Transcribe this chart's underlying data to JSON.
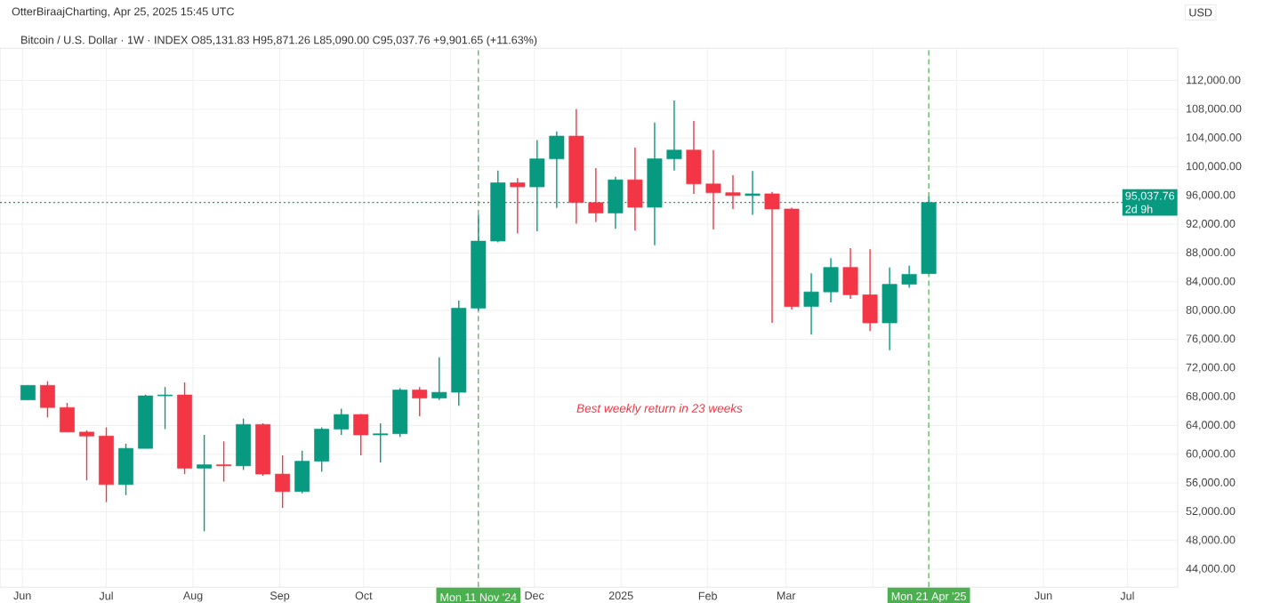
{
  "chart_data": {
    "type": "candlestick",
    "title": "Bitcoin / U.S. Dollar · 1W · INDEX  O85,131.83 H95,871.26 L85,090.00 C95,037.76 +9,901.65 (+11.63%)",
    "subtitle": "OtterBiraajCharting, Apr 25, 2025 15:45 UTC",
    "ylabel": "USD",
    "annotations": [
      "Best weekly return in 23 weeks",
      "2d 9h"
    ],
    "x": [
      "2024-06-03",
      "2024-06-10",
      "2024-06-17",
      "2024-06-24",
      "2024-07-01",
      "2024-07-08",
      "2024-07-15",
      "2024-07-22",
      "2024-07-29",
      "2024-08-05",
      "2024-08-12",
      "2024-08-19",
      "2024-08-26",
      "2024-09-02",
      "2024-09-09",
      "2024-09-16",
      "2024-09-23",
      "2024-09-30",
      "2024-10-07",
      "2024-10-14",
      "2024-10-21",
      "2024-10-28",
      "2024-11-04",
      "2024-11-11",
      "2024-11-18",
      "2024-11-25",
      "2024-12-02",
      "2024-12-09",
      "2024-12-16",
      "2024-12-23",
      "2024-12-30",
      "2025-01-06",
      "2025-01-13",
      "2025-01-20",
      "2025-01-27",
      "2025-02-03",
      "2025-02-10",
      "2025-02-17",
      "2025-02-24",
      "2025-03-03",
      "2025-03-10",
      "2025-03-17",
      "2025-03-24",
      "2025-03-31",
      "2025-04-07",
      "2025-04-14",
      "2025-04-21"
    ],
    "ohlc": [
      [
        67560,
        69590,
        67560,
        69590
      ],
      [
        69590,
        70160,
        65120,
        66500
      ],
      [
        66500,
        67150,
        63090,
        63090
      ],
      [
        63090,
        63340,
        56380,
        62530
      ],
      [
        62530,
        63740,
        53340,
        55780
      ],
      [
        55780,
        61470,
        54320,
        60820
      ],
      [
        60820,
        68290,
        60820,
        68130
      ],
      [
        68130,
        69350,
        63500,
        68250
      ],
      [
        68250,
        70000,
        57240,
        58060
      ],
      [
        58060,
        62690,
        49280,
        58540
      ],
      [
        58540,
        61790,
        56190,
        58380
      ],
      [
        58380,
        64960,
        57810,
        64150
      ],
      [
        64150,
        64310,
        57000,
        57240
      ],
      [
        57240,
        59840,
        52530,
        54810
      ],
      [
        54810,
        60490,
        54560,
        59030
      ],
      [
        59030,
        63740,
        57570,
        63500
      ],
      [
        63500,
        66340,
        62690,
        65530
      ],
      [
        65530,
        65600,
        59840,
        62690
      ],
      [
        62690,
        64310,
        58870,
        62850
      ],
      [
        62850,
        69190,
        62400,
        68940
      ],
      [
        68940,
        69350,
        65290,
        67810
      ],
      [
        67810,
        73490,
        67560,
        68620
      ],
      [
        68620,
        81370,
        66750,
        80320
      ],
      [
        80320,
        93310,
        80000,
        89660
      ],
      [
        89660,
        99490,
        89500,
        97780
      ],
      [
        97780,
        98430,
        90720,
        97210
      ],
      [
        97210,
        103710,
        91040,
        101110
      ],
      [
        101110,
        104930,
        94290,
        104280
      ],
      [
        104280,
        108020,
        92100,
        95020
      ],
      [
        95020,
        99810,
        92340,
        93560
      ],
      [
        93560,
        98600,
        91360,
        98190
      ],
      [
        98190,
        102660,
        91120,
        94370
      ],
      [
        94370,
        106150,
        89090,
        101110
      ],
      [
        101110,
        109240,
        99490,
        102330
      ],
      [
        102330,
        106390,
        96240,
        97620
      ],
      [
        97620,
        102330,
        91280,
        96400
      ],
      [
        96400,
        98840,
        94130,
        96000
      ],
      [
        96000,
        99410,
        93310,
        96240
      ],
      [
        96240,
        96500,
        78280,
        94130
      ],
      [
        94130,
        94300,
        80150,
        80560
      ],
      [
        80560,
        85190,
        76660,
        82590
      ],
      [
        82590,
        87300,
        81130,
        86000
      ],
      [
        86000,
        88680,
        81620,
        82190
      ],
      [
        82190,
        88520,
        77150,
        78280
      ],
      [
        78280,
        86000,
        74470,
        83650
      ],
      [
        83650,
        86250,
        83160,
        85030
      ],
      [
        85131.83,
        95871.26,
        85090,
        95037.76
      ]
    ],
    "colors": [
      "#089981",
      "#f23645",
      "#f23645",
      "#f23645",
      "#f23645",
      "#089981",
      "#089981",
      "#089981",
      "#f23645",
      "#089981",
      "#f23645",
      "#089981",
      "#f23645",
      "#f23645",
      "#089981",
      "#089981",
      "#089981",
      "#f23645",
      "#089981",
      "#089981",
      "#f23645",
      "#089981",
      "#089981",
      "#089981",
      "#089981",
      "#f23645",
      "#089981",
      "#089981",
      "#f23645",
      "#f23645",
      "#089981",
      "#f23645",
      "#089981",
      "#089981",
      "#f23645",
      "#f23645",
      "#f23645",
      "#089981",
      "#f23645",
      "#f23645",
      "#089981",
      "#089981",
      "#f23645",
      "#f23645",
      "#089981",
      "#089981",
      "#089981"
    ],
    "xlim": [
      "2024-05-24",
      "2025-07-19"
    ],
    "xticks": [
      {
        "value": "2024-06-01",
        "label": "Jun"
      },
      {
        "value": "2024-07-01",
        "label": "Jul"
      },
      {
        "value": "2024-08-01",
        "label": "Aug"
      },
      {
        "value": "2024-09-01",
        "label": "Sep"
      },
      {
        "value": "2024-10-01",
        "label": "Oct"
      },
      {
        "value": "2024-11-01",
        "label": null
      },
      {
        "value": "2024-12-01",
        "label": "Dec"
      },
      {
        "value": "2025-01-01",
        "label": "2025"
      },
      {
        "value": "2025-02-01",
        "label": "Feb"
      },
      {
        "value": "2025-03-01",
        "label": "Mar"
      },
      {
        "value": "2025-04-01",
        "label": null
      },
      {
        "value": "2025-05-01",
        "label": null
      },
      {
        "value": "2025-06-01",
        "label": "Jun"
      },
      {
        "value": "2025-07-01",
        "label": "Jul"
      }
    ],
    "ylim": [
      41500,
      116500
    ],
    "yticks": [
      {
        "value": 44000,
        "label": "44,000.00"
      },
      {
        "value": 48000,
        "label": "48,000.00"
      },
      {
        "value": 52000,
        "label": "52,000.00"
      },
      {
        "value": 56000,
        "label": "56,000.00"
      },
      {
        "value": 60000,
        "label": "60,000.00"
      },
      {
        "value": 64000,
        "label": "64,000.00"
      },
      {
        "value": 68000,
        "label": "68,000.00"
      },
      {
        "value": 72000,
        "label": "72,000.00"
      },
      {
        "value": 76000,
        "label": "76,000.00"
      },
      {
        "value": 80000,
        "label": "80,000.00"
      },
      {
        "value": 84000,
        "label": "84,000.00"
      },
      {
        "value": 88000,
        "label": "88,000.00"
      },
      {
        "value": 92000,
        "label": "92,000.00"
      },
      {
        "value": 96000,
        "label": "96,000.00"
      },
      {
        "value": 100000,
        "label": "100,000.00"
      },
      {
        "value": 104000,
        "label": "104,000.00"
      },
      {
        "value": 108000,
        "label": "108,000.00"
      },
      {
        "value": 112000,
        "label": "112,000.00"
      }
    ],
    "ref_lines": [
      {
        "axis": "y",
        "value": 95037.76,
        "label": "95,037.76",
        "color": "#089981",
        "line_style": "dotted"
      },
      {
        "axis": "x",
        "value": "2024-11-11",
        "label": "Mon 11 Nov '24",
        "color": "#4caf50",
        "line_style": "dashed"
      },
      {
        "axis": "x",
        "value": "2025-04-21",
        "label": "Mon 21 Apr '25",
        "color": "#4caf50",
        "line_style": "dashed"
      }
    ],
    "grid": true
  }
}
